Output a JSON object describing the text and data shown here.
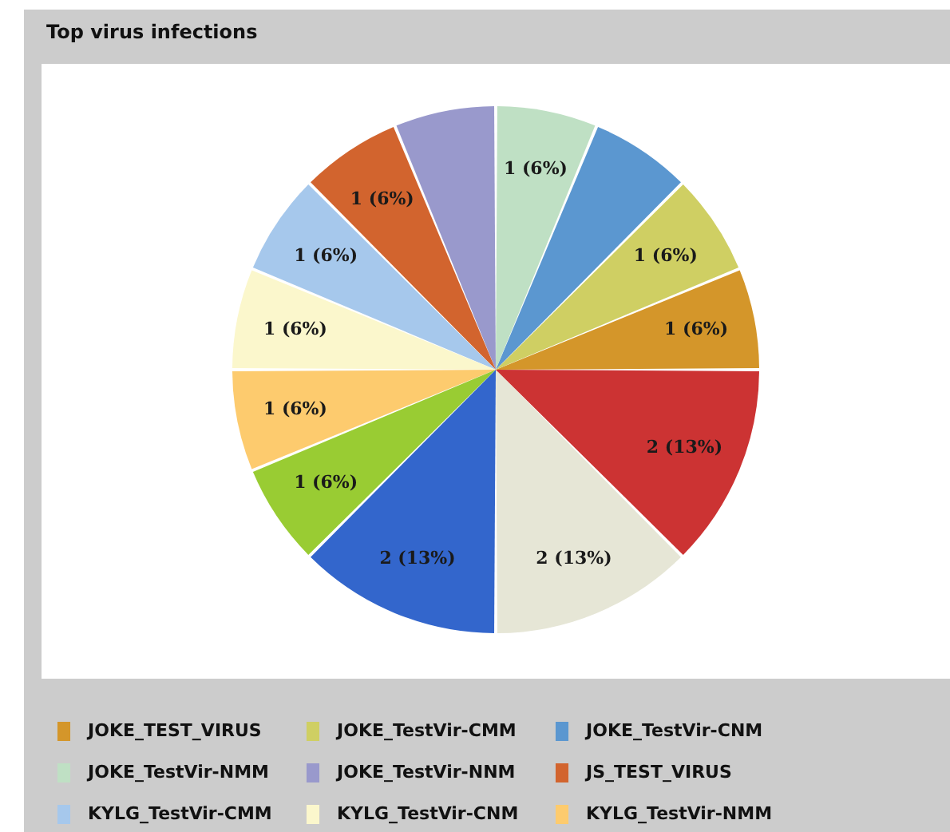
{
  "chart_data": {
    "type": "pie",
    "title": "Top virus infections",
    "categories": [
      "JOKE_TEST_VIRUS",
      "JOKE_TestVir-CMM",
      "JOKE_TestVir-CNM",
      "JOKE_TestVir-NMM",
      "JOKE_TestVir-NNM",
      "JS_TEST_VIRUS",
      "KYLG_TestVir-CMM",
      "KYLG_TestVir-CNM",
      "KYLG_TestVir-NMM",
      null,
      null,
      null,
      null
    ],
    "values": [
      1,
      1,
      1,
      1,
      1,
      1,
      1,
      1,
      1,
      1,
      2,
      2,
      2
    ],
    "colors": [
      "#d4962a",
      "#cfcf63",
      "#5b97d0",
      "#bfe0c4",
      "#9999cc",
      "#d2642e",
      "#a6c8ec",
      "#fbf7cc",
      "#fdcb6e",
      "#99cc33",
      "#3366cc",
      "#e6e6d6",
      "#cc3333"
    ],
    "value_labels": [
      "1 (6%)",
      "1 (6%)",
      null,
      "1 (6%)",
      null,
      "1 (6%)",
      "1 (6%)",
      "1 (6%)",
      "1 (6%)",
      "1 (6%)",
      "2 (13%)",
      "2 (13%)",
      "2 (13%)"
    ],
    "legend": "bottom"
  }
}
